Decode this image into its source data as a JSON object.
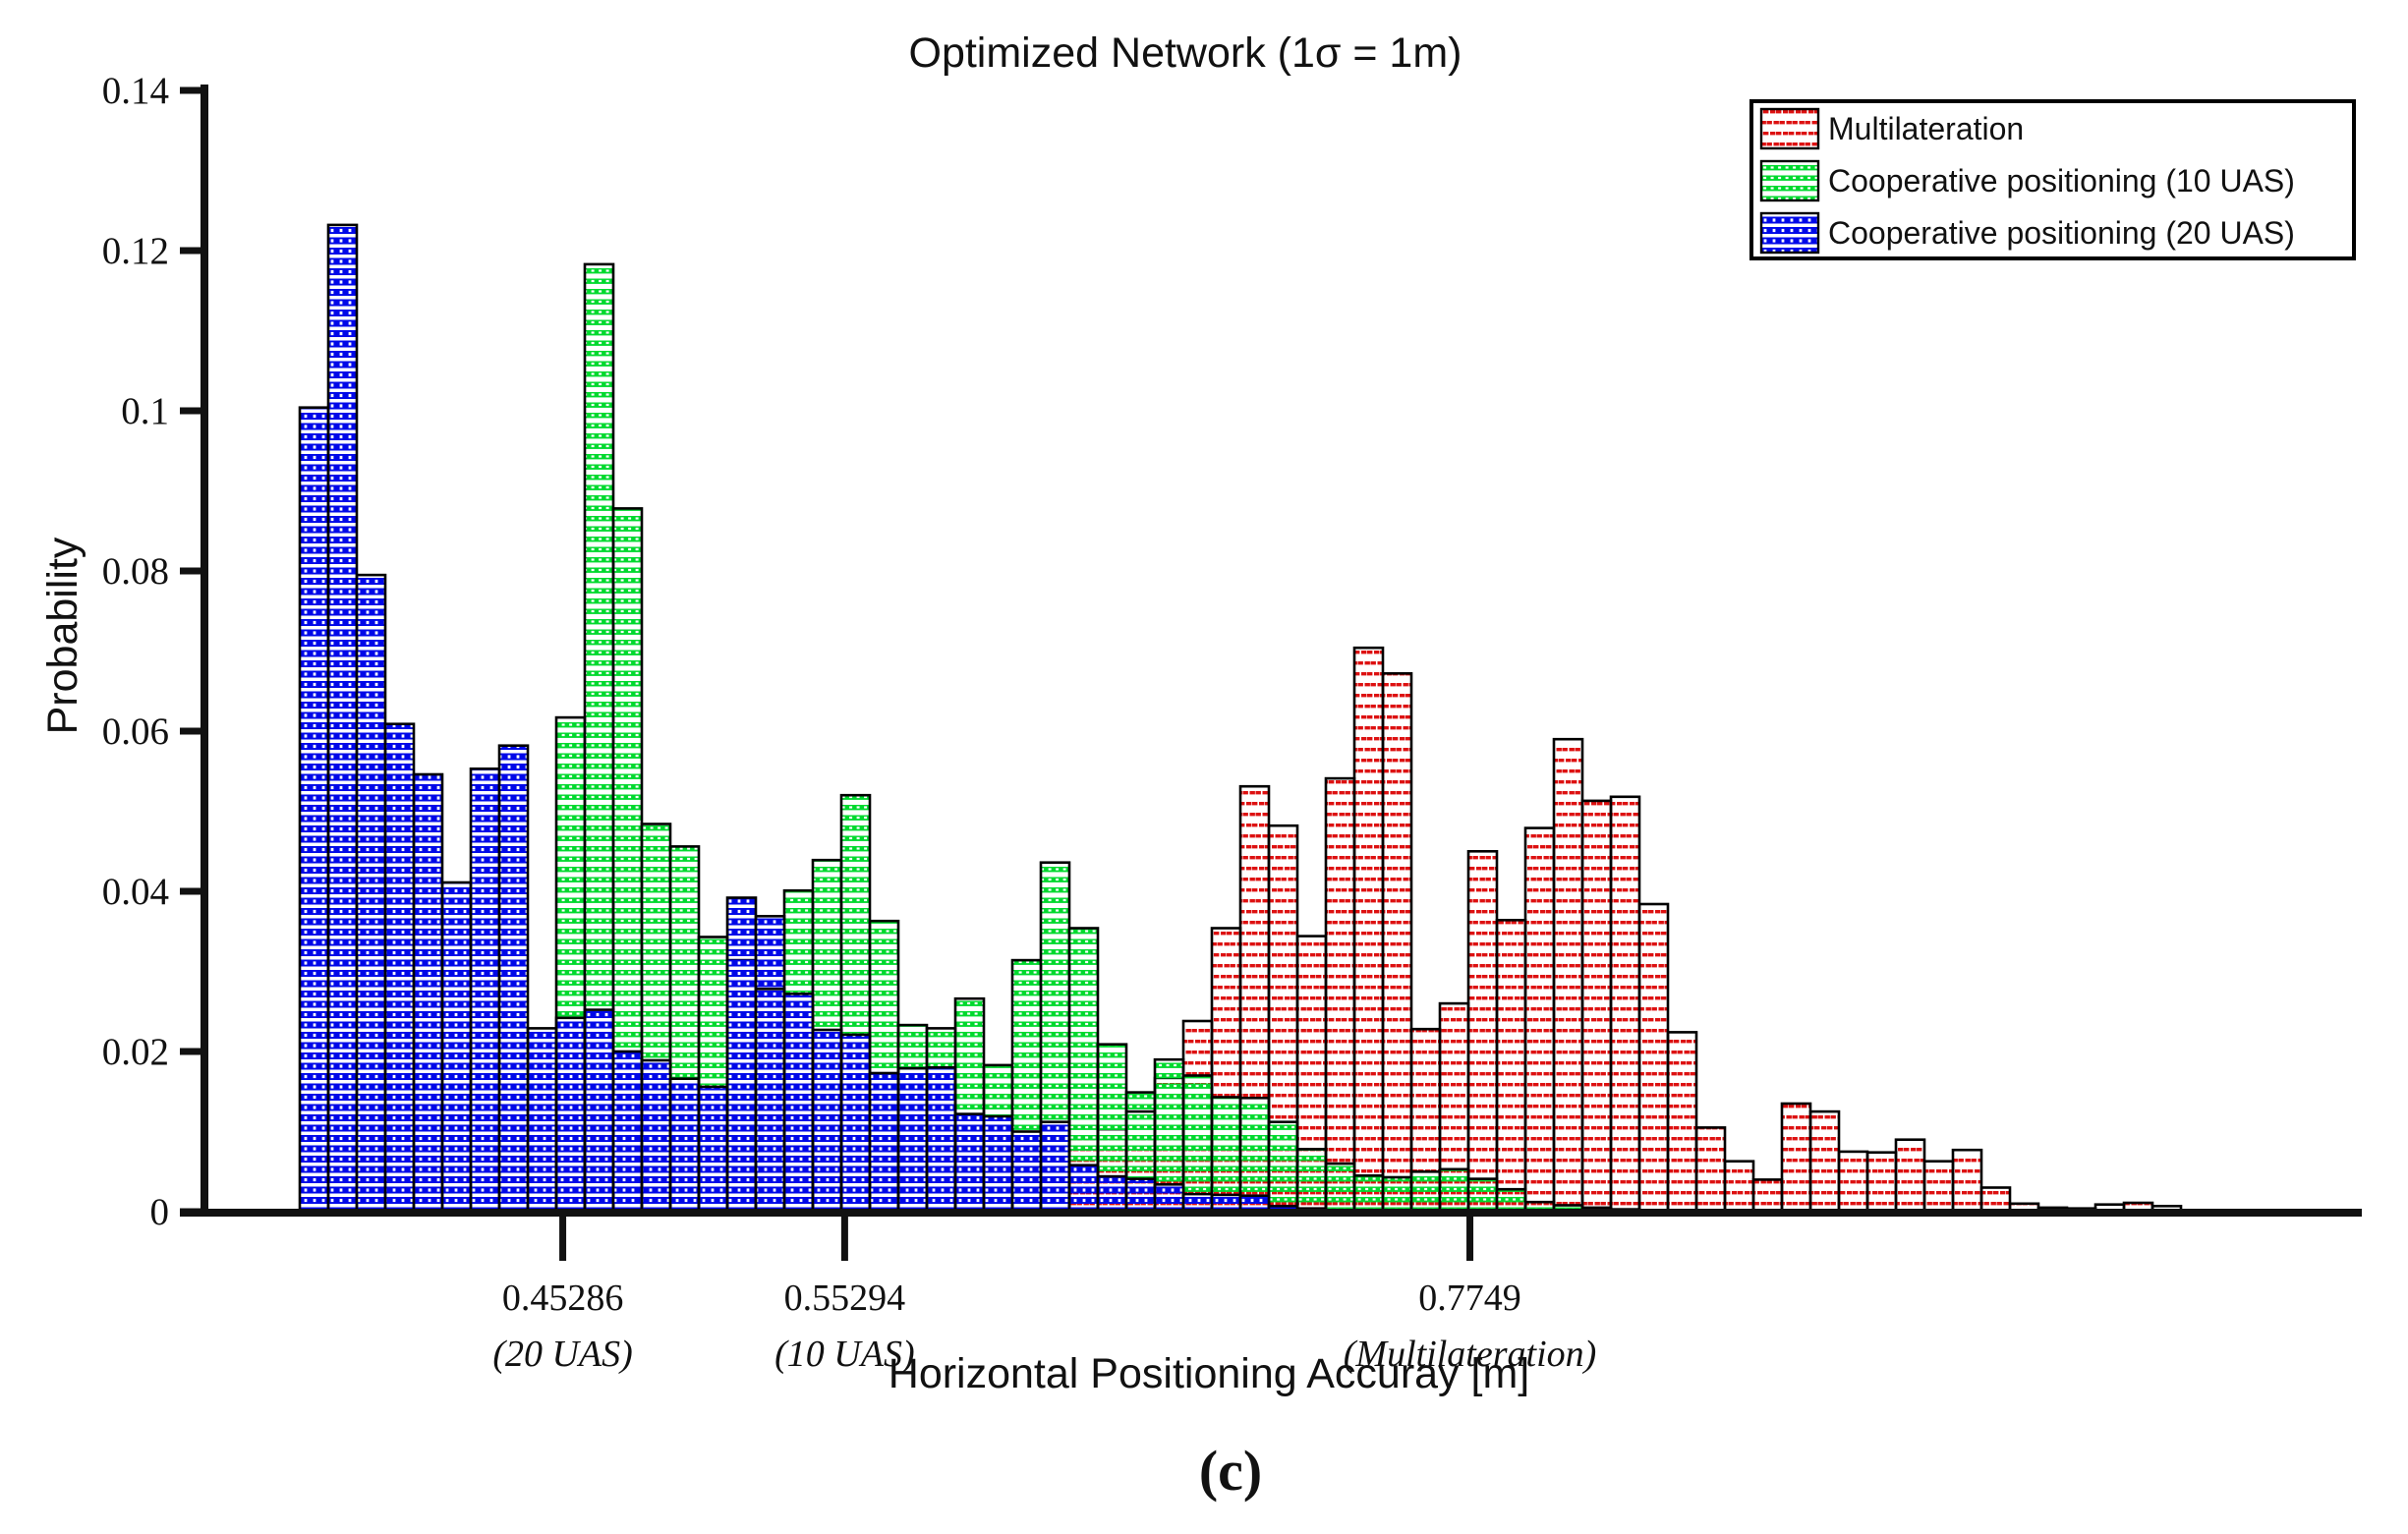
{
  "title": "Optimized Network (1σ = 1m)",
  "caption": "(c)",
  "axes": {
    "ylabel": "Probability",
    "xlabel": "Horizontal Positioning Accuray [m]",
    "ytick_labels": [
      "0",
      "0.02",
      "0.04",
      "0.06",
      "0.08",
      "0.1",
      "0.12",
      "0.14"
    ],
    "ytick_values": [
      0,
      0.02,
      0.04,
      0.06,
      0.08,
      0.1,
      0.12,
      0.14
    ],
    "ylim": [
      0,
      0.14
    ]
  },
  "legend": {
    "entries": [
      {
        "label": "Multilateration",
        "series": "red"
      },
      {
        "label": "Cooperative positioning (10 UAS)",
        "series": "green"
      },
      {
        "label": "Cooperative positioning (20 UAS)",
        "series": "blue"
      }
    ]
  },
  "annotations": [
    {
      "value_label": "0.45286",
      "note": "(20 UAS)",
      "x_value": 0.45286
    },
    {
      "value_label": "0.55294",
      "note": "(10 UAS)",
      "x_value": 0.55294
    },
    {
      "value_label": "0.7749",
      "note": "(Multilateration)",
      "x_value": 0.7749
    }
  ],
  "colors": {
    "red": "#DD1111",
    "green": "#00D92E",
    "blue": "#0008E8",
    "outline": "#000000",
    "axis": "#111111"
  },
  "chart_data": {
    "type": "bar",
    "subtype": "overlaid-probability-histograms",
    "title": "Optimized Network (1σ = 1m)",
    "xlabel": "Horizontal Positioning Accuray [m]",
    "ylabel": "Probability",
    "ylim": [
      0,
      0.14
    ],
    "grid": false,
    "legend_position": "top-right",
    "first_bin_left_m": 0.3595,
    "bin_width_m": 0.0101,
    "series": [
      {
        "name": "Multilateration",
        "color": "red",
        "start_bin": 27,
        "values": [
          0.0158,
          0.0103,
          0.0125,
          0.0167,
          0.0238,
          0.0354,
          0.0531,
          0.0482,
          0.0344,
          0.0541,
          0.0704,
          0.0672,
          0.0228,
          0.026,
          0.045,
          0.0364,
          0.0479,
          0.059,
          0.0513,
          0.0518,
          0.0384,
          0.0224,
          0.0105,
          0.0063,
          0.004,
          0.0135,
          0.0125,
          0.0075,
          0.0074,
          0.009,
          0.0063,
          0.0077,
          0.003,
          0.001,
          0.0005,
          0.0004,
          0.0009,
          0.0011,
          0.0007
        ]
      },
      {
        "name": "Cooperative positioning (10 UAS)",
        "color": "green",
        "start_bin": 9,
        "values": [
          0.0617,
          0.1183,
          0.0878,
          0.0484,
          0.0456,
          0.0343,
          0.0314,
          0.0278,
          0.0401,
          0.0439,
          0.052,
          0.0363,
          0.0233,
          0.0229,
          0.0266,
          0.0183,
          0.0314,
          0.0436,
          0.0354,
          0.0209,
          0.0149,
          0.019,
          0.017,
          0.0143,
          0.0142,
          0.0112,
          0.0078,
          0.006,
          0.0045,
          0.0043,
          0.005,
          0.0053,
          0.0041,
          0.0028,
          0.0012,
          0.0008,
          0.0005,
          0.0003,
          0.0002
        ]
      },
      {
        "name": "Cooperative positioning (20 UAS)",
        "color": "blue",
        "start_bin": 0,
        "values": [
          0.1004,
          0.1232,
          0.0795,
          0.0609,
          0.0546,
          0.0411,
          0.0553,
          0.0582,
          0.0229,
          0.0242,
          0.0252,
          0.02,
          0.0189,
          0.0166,
          0.0156,
          0.0392,
          0.0369,
          0.0272,
          0.0227,
          0.0221,
          0.0173,
          0.0179,
          0.018,
          0.0122,
          0.0119,
          0.01,
          0.0112,
          0.0058,
          0.0044,
          0.0041,
          0.0034,
          0.0022,
          0.0021,
          0.002,
          0.0007,
          0.0004,
          0.0002
        ]
      }
    ],
    "annotated_means": [
      {
        "x": 0.45286,
        "label": "0.45286 (20 UAS)"
      },
      {
        "x": 0.55294,
        "label": "0.55294 (10 UAS)"
      },
      {
        "x": 0.7749,
        "label": "0.7749 (Multilateration)"
      }
    ]
  }
}
